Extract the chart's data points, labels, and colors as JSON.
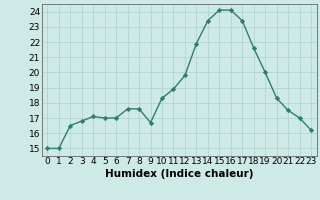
{
  "x": [
    0,
    1,
    2,
    3,
    4,
    5,
    6,
    7,
    8,
    9,
    10,
    11,
    12,
    13,
    14,
    15,
    16,
    17,
    18,
    19,
    20,
    21,
    22,
    23
  ],
  "y": [
    15.0,
    15.0,
    16.5,
    16.8,
    17.1,
    17.0,
    17.0,
    17.6,
    17.6,
    16.7,
    18.3,
    18.9,
    19.8,
    21.9,
    23.4,
    24.1,
    24.1,
    23.4,
    21.6,
    20.0,
    18.3,
    17.5,
    17.0,
    16.2
  ],
  "line_color": "#2e7d6e",
  "marker": "D",
  "marker_size": 2.2,
  "linewidth": 1.0,
  "background_color": "#ceeae7",
  "grid_color": "#b0cfcc",
  "xlabel": "Humidex (Indice chaleur)",
  "xlabel_fontsize": 7.5,
  "ylim": [
    14.5,
    24.5
  ],
  "yticks": [
    15,
    16,
    17,
    18,
    19,
    20,
    21,
    22,
    23,
    24
  ],
  "xticks": [
    0,
    1,
    2,
    3,
    4,
    5,
    6,
    7,
    8,
    9,
    10,
    11,
    12,
    13,
    14,
    15,
    16,
    17,
    18,
    19,
    20,
    21,
    22,
    23
  ],
  "tick_fontsize": 6.5,
  "spine_color": "#666666"
}
